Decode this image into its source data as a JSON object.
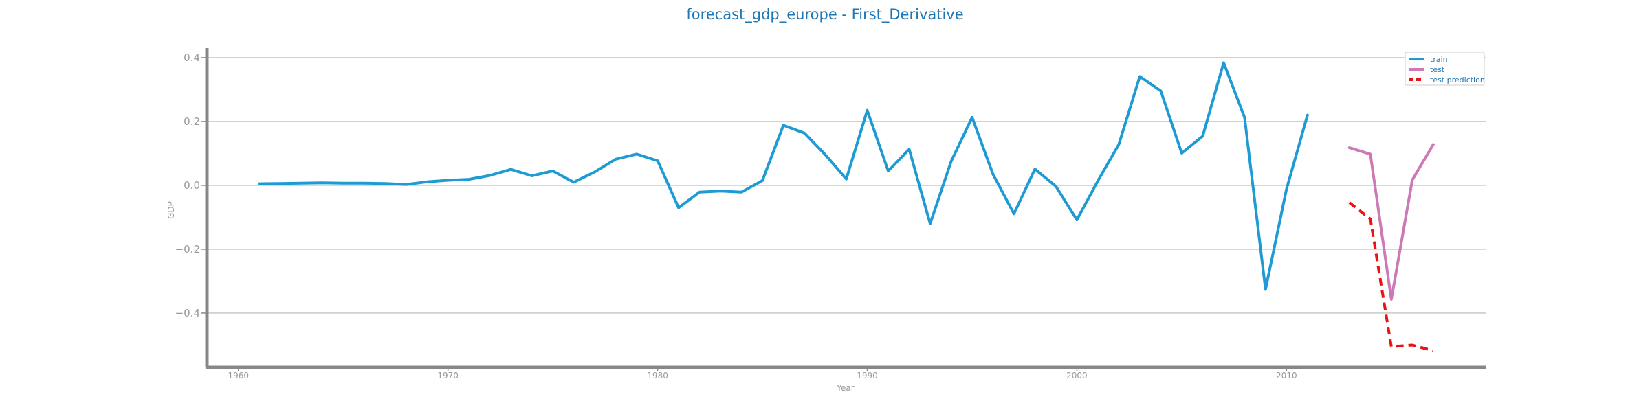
{
  "chart_data": {
    "type": "line",
    "title": "forecast_gdp_europe - First_Derivative",
    "xlabel": "Year",
    "ylabel": "GDP",
    "xlim": [
      1958.5,
      2019.5
    ],
    "ylim": [
      -0.57,
      0.43
    ],
    "xticks": [
      1960,
      1970,
      1980,
      1990,
      2000,
      2010
    ],
    "xtick_labels": [
      "1960",
      "1970",
      "1980",
      "1990",
      "2000",
      "2010"
    ],
    "yticks": [
      -0.4,
      -0.2,
      0.0,
      0.2,
      0.4
    ],
    "ytick_labels": [
      "−0.4",
      "−0.2",
      "0.0",
      "0.2",
      "0.4"
    ],
    "grid": "horizontal",
    "legend_position": "top-right",
    "series": [
      {
        "name": "train",
        "color": "#1f9bd4",
        "style": "solid",
        "x": [
          1961,
          1962,
          1963,
          1964,
          1965,
          1966,
          1967,
          1968,
          1969,
          1970,
          1971,
          1972,
          1973,
          1974,
          1975,
          1976,
          1977,
          1978,
          1979,
          1980,
          1981,
          1982,
          1983,
          1984,
          1985,
          1986,
          1987,
          1988,
          1989,
          1990,
          1991,
          1992,
          1993,
          1994,
          1995,
          1996,
          1997,
          1998,
          1999,
          2000,
          2001,
          2002,
          2003,
          2004,
          2005,
          2006,
          2007,
          2008,
          2009,
          2010,
          2011
        ],
        "y": [
          0.005,
          0.006,
          0.007,
          0.008,
          0.007,
          0.007,
          0.006,
          0.003,
          0.011,
          0.016,
          0.019,
          0.031,
          0.05,
          0.03,
          0.045,
          0.01,
          0.042,
          0.082,
          0.098,
          0.077,
          -0.07,
          -0.021,
          -0.018,
          -0.021,
          0.015,
          0.188,
          0.164,
          0.096,
          0.02,
          0.235,
          0.045,
          0.113,
          -0.12,
          0.075,
          0.213,
          0.035,
          -0.089,
          0.051,
          -0.003,
          -0.108,
          0.014,
          0.128,
          0.341,
          0.296,
          0.101,
          0.154,
          0.384,
          0.213,
          -0.326,
          -0.012,
          0.22
        ]
      },
      {
        "name": "test",
        "color": "#cc79b5",
        "style": "solid",
        "x": [
          2013,
          2014,
          2015,
          2016,
          2017
        ],
        "y": [
          0.118,
          0.098,
          -0.357,
          0.017,
          0.128
        ]
      },
      {
        "name": "test prediction",
        "color": "#ee1111",
        "style": "dashed",
        "x": [
          2013,
          2014,
          2015,
          2016,
          2017
        ],
        "y": [
          -0.054,
          -0.105,
          -0.505,
          -0.5,
          -0.518
        ]
      }
    ]
  }
}
